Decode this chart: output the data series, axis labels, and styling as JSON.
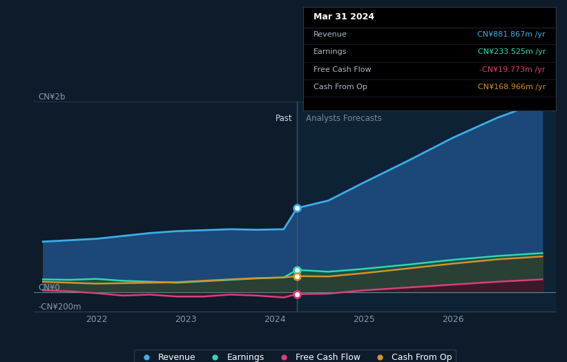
{
  "bg_color": "#0d1b2a",
  "future_bg_color": "#0e2236",
  "divider_x": 2024.25,
  "ylim": [
    -200,
    2000
  ],
  "xlim": [
    2021.3,
    2027.15
  ],
  "xticks": [
    2022,
    2023,
    2024,
    2025,
    2026
  ],
  "past_label": "Past",
  "forecast_label": "Analysts Forecasts",
  "revenue_color": "#3daee8",
  "earnings_color": "#2ed8b4",
  "fcf_color": "#d9407a",
  "cashop_color": "#d4922a",
  "revenue_fill_color": "#1b4878",
  "earnings_fill_color": "#1a5045",
  "cashop_fill_color": "#2a4035",
  "tooltip_title": "Mar 31 2024",
  "tooltip_revenue_label": "Revenue",
  "tooltip_revenue_value": "CN¥881.867m /yr",
  "tooltip_revenue_color": "#3daee8",
  "tooltip_earnings_label": "Earnings",
  "tooltip_earnings_value": "CN¥233.525m /yr",
  "tooltip_earnings_color": "#2ed8b4",
  "tooltip_fcf_label": "Free Cash Flow",
  "tooltip_fcf_value": "-CN¥19.773m /yr",
  "tooltip_fcf_color": "#d9407a",
  "tooltip_cashop_label": "Cash From Op",
  "tooltip_cashop_value": "CN¥168.966m /yr",
  "tooltip_cashop_color": "#d4922a",
  "revenue_x": [
    2021.4,
    2021.7,
    2022.0,
    2022.3,
    2022.6,
    2022.9,
    2023.2,
    2023.5,
    2023.8,
    2024.1,
    2024.25,
    2024.6,
    2025.0,
    2025.5,
    2026.0,
    2026.5,
    2027.0
  ],
  "revenue_y": [
    530,
    545,
    560,
    590,
    620,
    640,
    650,
    660,
    655,
    660,
    882,
    960,
    1150,
    1380,
    1620,
    1830,
    2000
  ],
  "earnings_x": [
    2021.4,
    2021.7,
    2022.0,
    2022.3,
    2022.6,
    2022.9,
    2023.2,
    2023.5,
    2023.8,
    2024.1,
    2024.25,
    2024.6,
    2025.0,
    2025.5,
    2026.0,
    2026.5,
    2027.0
  ],
  "earnings_y": [
    135,
    130,
    140,
    120,
    110,
    100,
    115,
    130,
    145,
    155,
    234,
    215,
    245,
    290,
    340,
    380,
    410
  ],
  "cashop_x": [
    2021.4,
    2021.7,
    2022.0,
    2022.3,
    2022.6,
    2022.9,
    2023.2,
    2023.5,
    2023.8,
    2024.1,
    2024.25,
    2024.6,
    2025.0,
    2025.5,
    2026.0,
    2026.5,
    2027.0
  ],
  "cashop_y": [
    110,
    100,
    90,
    95,
    100,
    105,
    120,
    135,
    148,
    155,
    169,
    165,
    200,
    250,
    300,
    345,
    375
  ],
  "fcf_x": [
    2021.4,
    2021.7,
    2022.0,
    2022.3,
    2022.6,
    2022.9,
    2023.2,
    2023.5,
    2023.8,
    2024.1,
    2024.25,
    2024.6,
    2025.0,
    2025.5,
    2026.0,
    2026.5,
    2027.0
  ],
  "fcf_y": [
    20,
    10,
    -10,
    -35,
    -25,
    -45,
    -45,
    -25,
    -35,
    -55,
    -20,
    -15,
    20,
    50,
    80,
    110,
    135
  ],
  "divider_past_idx": 10,
  "dot_revenue_y": 882,
  "dot_earnings_y": 234,
  "dot_cashop_y": 169,
  "dot_fcf_y": -20
}
